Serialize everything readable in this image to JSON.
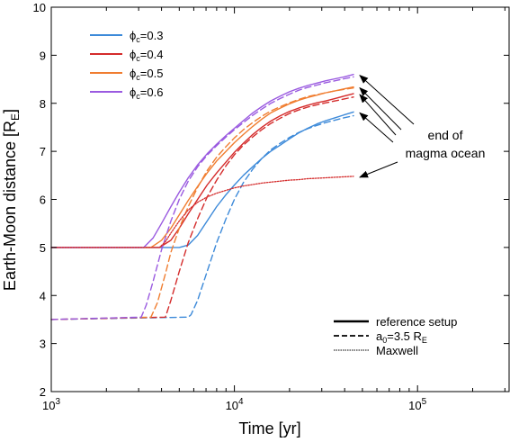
{
  "chart_data": {
    "type": "line",
    "xlabel": "Time [yr]",
    "ylabel": "Earth-Moon distance [R",
    "ylabel_sub": "E",
    "ylabel_suffix": "]",
    "xscale": "log",
    "xlim": [
      1000,
      316228
    ],
    "ylim": [
      2,
      10
    ],
    "yticks": [
      2,
      3,
      4,
      5,
      6,
      7,
      8,
      9,
      10
    ],
    "xticks": [
      {
        "value": 1000,
        "base": "10",
        "exp": "3"
      },
      {
        "value": 10000,
        "base": "10",
        "exp": "4"
      },
      {
        "value": 100000,
        "base": "10",
        "exp": "5"
      }
    ],
    "grid": false,
    "colors": {
      "phi03": "#3d8ad9",
      "phi04": "#d42b2b",
      "phi05": "#f07d30",
      "phi06": "#9a5ae0"
    },
    "series": [
      {
        "name": "ϕc=0.3",
        "legend_label": "ϕ",
        "legend_sub": "c",
        "legend_val": "=0.3",
        "color": "#3d8ad9",
        "style": "solid",
        "x": [
          1000,
          5000,
          5600,
          6300,
          7100,
          8000,
          9000,
          10000,
          11200,
          12600,
          14100,
          15800,
          17800,
          20000,
          22400,
          25100,
          28200,
          31600,
          35500,
          39800,
          44700
        ],
        "y": [
          5.0,
          5.0,
          5.05,
          5.25,
          5.55,
          5.85,
          6.1,
          6.3,
          6.5,
          6.68,
          6.85,
          7.0,
          7.13,
          7.26,
          7.38,
          7.48,
          7.57,
          7.64,
          7.7,
          7.76,
          7.82
        ]
      },
      {
        "name": "ϕc=0.4",
        "legend_label": "ϕ",
        "legend_sub": "c",
        "legend_val": "=0.4",
        "color": "#d42b2b",
        "style": "solid",
        "x": [
          1000,
          3900,
          4500,
          5000,
          5600,
          6300,
          7100,
          8000,
          9000,
          10000,
          11200,
          12600,
          14100,
          15800,
          17800,
          20000,
          22400,
          25100,
          28200,
          31600,
          35500,
          39800,
          44700
        ],
        "y": [
          5.0,
          5.0,
          5.15,
          5.4,
          5.7,
          6.0,
          6.3,
          6.55,
          6.78,
          6.98,
          7.17,
          7.35,
          7.5,
          7.63,
          7.74,
          7.83,
          7.9,
          7.96,
          8.01,
          8.05,
          8.1,
          8.15,
          8.2
        ]
      },
      {
        "name": "ϕc=0.5",
        "legend_label": "ϕ",
        "legend_sub": "c",
        "legend_val": "=0.5",
        "color": "#f07d30",
        "style": "solid",
        "x": [
          1000,
          3500,
          4000,
          4500,
          5000,
          5600,
          6300,
          7100,
          8000,
          9000,
          10000,
          11200,
          12600,
          14100,
          15800,
          17800,
          20000,
          22400,
          25100,
          28200,
          31600,
          35500,
          39800,
          44700
        ],
        "y": [
          5.0,
          5.0,
          5.15,
          5.4,
          5.68,
          5.98,
          6.27,
          6.55,
          6.8,
          7.0,
          7.18,
          7.35,
          7.52,
          7.67,
          7.8,
          7.9,
          7.99,
          8.06,
          8.12,
          8.17,
          8.22,
          8.26,
          8.3,
          8.34
        ]
      },
      {
        "name": "ϕc=0.6",
        "legend_label": "ϕ",
        "legend_sub": "c",
        "legend_val": "=0.6",
        "color": "#9a5ae0",
        "style": "solid",
        "x": [
          1000,
          3200,
          3600,
          4000,
          4500,
          5000,
          5600,
          6300,
          7100,
          8000,
          9000,
          10000,
          11200,
          12600,
          14100,
          15800,
          17800,
          20000,
          22400,
          25100,
          28200,
          31600,
          35500,
          39800,
          44700
        ],
        "y": [
          5.0,
          5.0,
          5.2,
          5.5,
          5.85,
          6.15,
          6.45,
          6.72,
          6.95,
          7.15,
          7.33,
          7.48,
          7.64,
          7.8,
          7.93,
          8.05,
          8.15,
          8.24,
          8.31,
          8.37,
          8.42,
          8.47,
          8.51,
          8.55,
          8.6
        ]
      },
      {
        "name": "",
        "color": "#3d8ad9",
        "style": "dashed",
        "x": [
          1000,
          5600,
          5800,
          6300,
          7100,
          8000,
          9000,
          10000,
          11200,
          12600,
          14100,
          15800,
          17800,
          20000,
          22400,
          25100,
          28200,
          31600,
          35500,
          39800,
          44700
        ],
        "y": [
          3.5,
          3.55,
          3.6,
          3.9,
          4.5,
          5.1,
          5.6,
          6.0,
          6.35,
          6.63,
          6.85,
          7.03,
          7.17,
          7.29,
          7.39,
          7.47,
          7.54,
          7.6,
          7.65,
          7.7,
          7.74
        ]
      },
      {
        "name": "",
        "color": "#d42b2b",
        "style": "dashed",
        "x": [
          1000,
          4200,
          4500,
          5000,
          5600,
          6300,
          7100,
          8000,
          9000,
          10000,
          11200,
          12600,
          14100,
          15800,
          17800,
          20000,
          22400,
          25100,
          28200,
          31600,
          35500,
          39800,
          44700
        ],
        "y": [
          3.5,
          3.55,
          3.9,
          4.5,
          5.1,
          5.6,
          6.05,
          6.4,
          6.7,
          6.93,
          7.13,
          7.3,
          7.45,
          7.58,
          7.69,
          7.79,
          7.86,
          7.92,
          7.97,
          8.01,
          8.05,
          8.09,
          8.13
        ]
      },
      {
        "name": "",
        "color": "#f07d30",
        "style": "dashed",
        "x": [
          1000,
          3500,
          3800,
          4200,
          4500,
          5000,
          5600,
          6300,
          7100,
          8000,
          9000,
          10000,
          11200,
          12600,
          14100,
          15800,
          17800,
          20000,
          22400,
          25100,
          28200,
          31600,
          35500,
          39800,
          44700
        ],
        "y": [
          3.5,
          3.55,
          3.85,
          4.45,
          4.9,
          5.4,
          5.85,
          6.25,
          6.6,
          6.88,
          7.1,
          7.28,
          7.45,
          7.6,
          7.73,
          7.84,
          7.93,
          8.01,
          8.08,
          8.14,
          8.18,
          8.22,
          8.26,
          8.29,
          8.32
        ]
      },
      {
        "name": "",
        "color": "#9a5ae0",
        "style": "dashed",
        "x": [
          1000,
          3100,
          3300,
          3600,
          4000,
          4500,
          5000,
          5600,
          6300,
          7100,
          8000,
          9000,
          10000,
          11200,
          12600,
          14100,
          15800,
          17800,
          20000,
          22400,
          25100,
          28200,
          31600,
          35500,
          39800,
          44700
        ],
        "y": [
          3.5,
          3.55,
          3.8,
          4.3,
          4.95,
          5.55,
          6.0,
          6.38,
          6.68,
          6.92,
          7.12,
          7.3,
          7.45,
          7.6,
          7.75,
          7.88,
          8.0,
          8.1,
          8.19,
          8.27,
          8.33,
          8.38,
          8.43,
          8.47,
          8.51,
          8.55
        ]
      },
      {
        "name": "",
        "color": "#d42b2b",
        "style": "dotted",
        "x": [
          1000,
          3900,
          4200,
          4500,
          5000,
          5600,
          6300,
          7100,
          8000,
          9000,
          10000,
          11200,
          12600,
          14100,
          15800,
          17800,
          20000,
          22400,
          25100,
          28200,
          31600,
          35500,
          39800,
          44700
        ],
        "y": [
          5.0,
          5.0,
          5.12,
          5.3,
          5.55,
          5.78,
          5.94,
          6.05,
          6.13,
          6.19,
          6.24,
          6.28,
          6.31,
          6.34,
          6.36,
          6.38,
          6.4,
          6.41,
          6.43,
          6.44,
          6.45,
          6.46,
          6.47,
          6.48
        ]
      }
    ],
    "style_legend": [
      {
        "text": "reference setup",
        "style": "solid"
      },
      {
        "text_main": "a",
        "text_sub": "0",
        "text_mid": "=3.5 R",
        "text_sub2": "E",
        "style": "dashed"
      },
      {
        "text": "Maxwell",
        "style": "dotted"
      }
    ],
    "annotation": {
      "lines": [
        "end of",
        "magma ocean"
      ],
      "arrow_targets": [
        {
          "x": 44700,
          "y": 8.6
        },
        {
          "x": 44700,
          "y": 8.34
        },
        {
          "x": 44700,
          "y": 8.2
        },
        {
          "x": 44700,
          "y": 7.82
        },
        {
          "x": 44700,
          "y": 6.48
        }
      ]
    }
  }
}
